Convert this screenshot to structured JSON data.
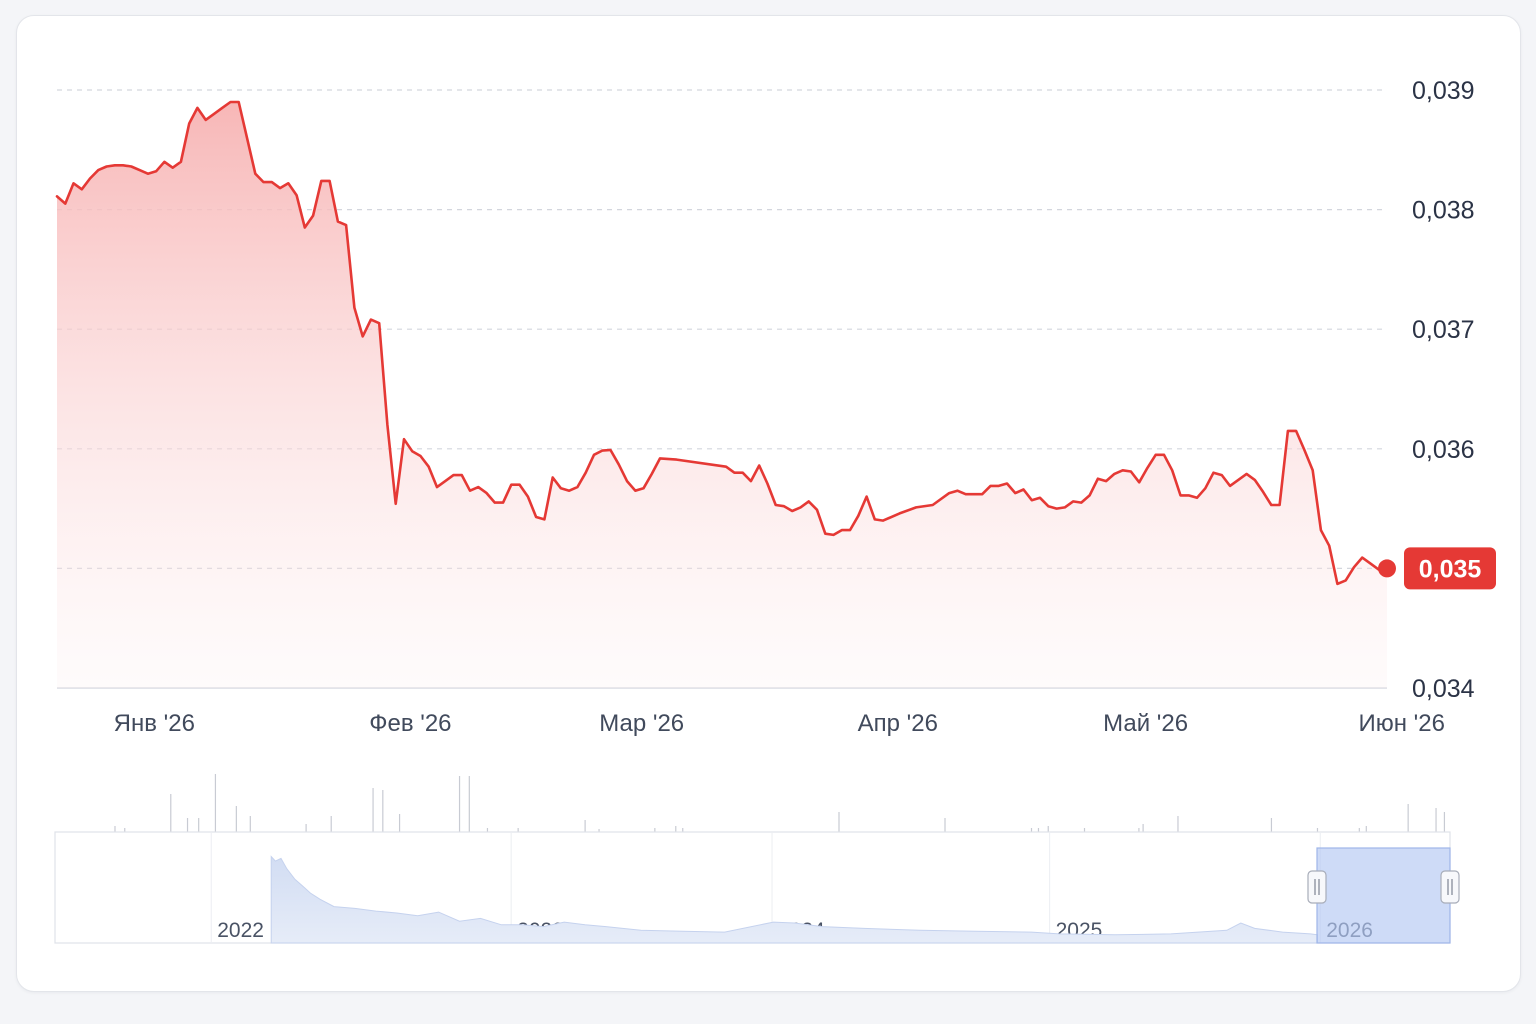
{
  "chart_data": {
    "type": "area",
    "title": "",
    "xlabel": "",
    "ylabel": "",
    "ylim": [
      0.034,
      0.039
    ],
    "yticks": [
      "0,039",
      "0,038",
      "0,037",
      "0,036",
      "0,035",
      "0,034"
    ],
    "ytick_values": [
      0.039,
      0.038,
      0.037,
      0.036,
      0.035,
      0.034
    ],
    "xticks": [
      "Янв '26",
      "Фев '26",
      "Мар '26",
      "Апр '26",
      "Май '26",
      "Июн '26"
    ],
    "xtick_dates": [
      "2026-01-01",
      "2026-02-01",
      "2026-03-01",
      "2026-04-01",
      "2026-05-01",
      "2026-06-01"
    ],
    "x_range": [
      "2025-12-27",
      "2026-06-21"
    ],
    "grid": true,
    "grid_style": "dashed",
    "line_color": "#e53935",
    "fill_color": "#f8c9c9",
    "current_value": 0.035,
    "current_label": "0,035",
    "current_label_color": "#e53935",
    "series": [
      {
        "values": [
          [
            "2025-12-27",
            0.03811
          ],
          [
            "2025-12-28",
            0.03805
          ],
          [
            "2025-12-29",
            0.03822
          ],
          [
            "2025-12-30",
            0.03817
          ],
          [
            "2025-12-31",
            0.03826
          ],
          [
            "2026-01-01",
            0.03833
          ],
          [
            "2026-01-02",
            0.03836
          ],
          [
            "2026-01-03",
            0.03837
          ],
          [
            "2026-01-04",
            0.03837
          ],
          [
            "2026-01-05",
            0.03836
          ],
          [
            "2026-01-06",
            0.03833
          ],
          [
            "2026-01-07",
            0.0383
          ],
          [
            "2026-01-08",
            0.03832
          ],
          [
            "2026-01-09",
            0.0384
          ],
          [
            "2026-01-10",
            0.03835
          ],
          [
            "2026-01-11",
            0.0384
          ],
          [
            "2026-01-12",
            0.03872
          ],
          [
            "2026-01-13",
            0.03885
          ],
          [
            "2026-01-14",
            0.03875
          ],
          [
            "2026-01-15",
            0.0388
          ],
          [
            "2026-01-16",
            0.03885
          ],
          [
            "2026-01-17",
            0.0389
          ],
          [
            "2026-01-18",
            0.0389
          ],
          [
            "2026-01-19",
            0.0386
          ],
          [
            "2026-01-20",
            0.0383
          ],
          [
            "2026-01-21",
            0.03823
          ],
          [
            "2026-01-22",
            0.03823
          ],
          [
            "2026-01-23",
            0.03818
          ],
          [
            "2026-01-24",
            0.03822
          ],
          [
            "2026-01-25",
            0.03812
          ],
          [
            "2026-01-26",
            0.03785
          ],
          [
            "2026-01-27",
            0.03795
          ],
          [
            "2026-01-28",
            0.03824
          ],
          [
            "2026-01-29",
            0.03824
          ],
          [
            "2026-01-30",
            0.0379
          ],
          [
            "2026-01-31",
            0.03787
          ],
          [
            "2026-02-01",
            0.03718
          ],
          [
            "2026-02-02",
            0.03694
          ],
          [
            "2026-02-03",
            0.03708
          ],
          [
            "2026-02-04",
            0.03705
          ],
          [
            "2026-02-05",
            0.0362
          ],
          [
            "2026-02-06",
            0.03554
          ],
          [
            "2026-02-07",
            0.03608
          ],
          [
            "2026-02-08",
            0.03598
          ],
          [
            "2026-02-09",
            0.03594
          ],
          [
            "2026-02-10",
            0.03585
          ],
          [
            "2026-02-11",
            0.03568
          ],
          [
            "2026-02-12",
            0.03573
          ],
          [
            "2026-02-13",
            0.03578
          ],
          [
            "2026-02-14",
            0.03578
          ],
          [
            "2026-02-15",
            0.03565
          ],
          [
            "2026-02-16",
            0.03568
          ],
          [
            "2026-02-17",
            0.03563
          ],
          [
            "2026-02-18",
            0.03555
          ],
          [
            "2026-02-19",
            0.03555
          ],
          [
            "2026-02-20",
            0.0357
          ],
          [
            "2026-02-21",
            0.0357
          ],
          [
            "2026-02-22",
            0.0356
          ],
          [
            "2026-02-23",
            0.03543
          ],
          [
            "2026-02-24",
            0.03541
          ],
          [
            "2026-02-25",
            0.03576
          ],
          [
            "2026-02-26",
            0.03567
          ],
          [
            "2026-02-27",
            0.03565
          ],
          [
            "2026-02-28",
            0.03568
          ],
          [
            "2026-03-01",
            0.0358
          ],
          [
            "2026-03-02",
            0.03595
          ],
          [
            "2026-03-03",
            0.035985
          ],
          [
            "2026-03-04",
            0.03599
          ],
          [
            "2026-03-05",
            0.03587
          ],
          [
            "2026-03-06",
            0.03573
          ],
          [
            "2026-03-07",
            0.03565
          ],
          [
            "2026-03-08",
            0.03567
          ],
          [
            "2026-03-09",
            0.03579
          ],
          [
            "2026-03-10",
            0.03592
          ],
          [
            "2026-03-12",
            0.03591
          ],
          [
            "2026-03-18",
            0.03585
          ],
          [
            "2026-03-19",
            0.0358
          ],
          [
            "2026-03-20",
            0.0358
          ],
          [
            "2026-03-21",
            0.03573
          ],
          [
            "2026-03-22",
            0.03586
          ],
          [
            "2026-03-23",
            0.03571
          ],
          [
            "2026-03-24",
            0.03553
          ],
          [
            "2026-03-25",
            0.03552
          ],
          [
            "2026-03-26",
            0.03548
          ],
          [
            "2026-03-27",
            0.03551
          ],
          [
            "2026-03-28",
            0.03556
          ],
          [
            "2026-03-29",
            0.03549
          ],
          [
            "2026-03-30",
            0.03529
          ],
          [
            "2026-03-31",
            0.03528
          ],
          [
            "2026-04-01",
            0.03532
          ],
          [
            "2026-04-02",
            0.03532
          ],
          [
            "2026-04-03",
            0.03544
          ],
          [
            "2026-04-04",
            0.0356
          ],
          [
            "2026-04-05",
            0.03541
          ],
          [
            "2026-04-06",
            0.0354
          ],
          [
            "2026-04-08",
            0.03546
          ],
          [
            "2026-04-10",
            0.03551
          ],
          [
            "2026-04-12",
            0.03553
          ],
          [
            "2026-04-14",
            0.03563
          ],
          [
            "2026-04-15",
            0.03565
          ],
          [
            "2026-04-16",
            0.03562
          ],
          [
            "2026-04-18",
            0.03562
          ],
          [
            "2026-04-19",
            0.03569
          ],
          [
            "2026-04-20",
            0.03569
          ],
          [
            "2026-04-21",
            0.03571
          ],
          [
            "2026-04-22",
            0.03563
          ],
          [
            "2026-04-23",
            0.03566
          ],
          [
            "2026-04-24",
            0.03557
          ],
          [
            "2026-04-25",
            0.03559
          ],
          [
            "2026-04-26",
            0.03552
          ],
          [
            "2026-04-27",
            0.0355
          ],
          [
            "2026-04-28",
            0.03551
          ],
          [
            "2026-04-29",
            0.03556
          ],
          [
            "2026-04-30",
            0.03555
          ],
          [
            "2026-05-01",
            0.03561
          ],
          [
            "2026-05-02",
            0.03575
          ],
          [
            "2026-05-03",
            0.03573
          ],
          [
            "2026-05-04",
            0.03579
          ],
          [
            "2026-05-05",
            0.03582
          ],
          [
            "2026-05-06",
            0.03581
          ],
          [
            "2026-05-07",
            0.03572
          ],
          [
            "2026-05-08",
            0.03584
          ],
          [
            "2026-05-09",
            0.03595
          ],
          [
            "2026-05-10",
            0.03595
          ],
          [
            "2026-05-11",
            0.03582
          ],
          [
            "2026-05-12",
            0.03561
          ],
          [
            "2026-05-13",
            0.03561
          ],
          [
            "2026-05-14",
            0.03559
          ],
          [
            "2026-05-15",
            0.03567
          ],
          [
            "2026-05-16",
            0.0358
          ],
          [
            "2026-05-17",
            0.03578
          ],
          [
            "2026-05-18",
            0.03569
          ],
          [
            "2026-05-19",
            0.03574
          ],
          [
            "2026-05-20",
            0.03579
          ],
          [
            "2026-05-21",
            0.03574
          ],
          [
            "2026-05-22",
            0.03564
          ],
          [
            "2026-05-23",
            0.03553
          ],
          [
            "2026-05-24",
            0.03553
          ],
          [
            "2026-05-25",
            0.03615
          ],
          [
            "2026-05-26",
            0.03615
          ],
          [
            "2026-05-27",
            0.03599
          ],
          [
            "2026-05-28",
            0.03582
          ],
          [
            "2026-05-29",
            0.03532
          ],
          [
            "2026-05-30",
            0.03519
          ],
          [
            "2026-05-31",
            0.03487
          ],
          [
            "2026-06-01",
            0.0349
          ],
          [
            "2026-06-02",
            0.03501
          ],
          [
            "2026-06-03",
            0.03509
          ],
          [
            "2026-06-04",
            0.03504
          ],
          [
            "2026-06-05",
            0.03499
          ],
          [
            "2026-06-06",
            0.035
          ]
        ]
      }
    ]
  },
  "navigator": {
    "years": [
      "2022",
      "2023",
      "2024",
      "2025",
      "2026"
    ],
    "series_color": "#c9d6f0",
    "window_color": "#b3c8f2",
    "selected_range": [
      "2026-01-01",
      "2026-06-06"
    ]
  }
}
